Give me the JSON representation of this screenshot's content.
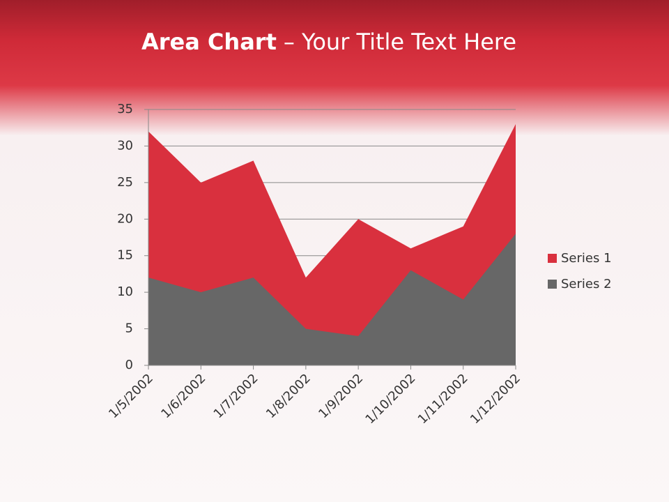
{
  "chart_data": {
    "type": "area",
    "title": [
      "Area Chart",
      "– Your Title Text Here"
    ],
    "categories": [
      "1/5/2002",
      "1/6/2002",
      "1/7/2002",
      "1/8/2002",
      "1/9/2002",
      "1/10/2002",
      "1/11/2002",
      "1/12/2002"
    ],
    "series": [
      {
        "name": "Series 1",
        "color": "#d9303e",
        "values": [
          32,
          25,
          28,
          12,
          20,
          16,
          19,
          33
        ]
      },
      {
        "name": "Series 2",
        "color": "#676767",
        "values": [
          12,
          10,
          12,
          5,
          4,
          13,
          9,
          18
        ]
      }
    ],
    "ylim": [
      0,
      35
    ],
    "yticks": [
      0,
      5,
      10,
      15,
      20,
      25,
      30,
      35
    ],
    "grid": true,
    "legend": "right"
  }
}
